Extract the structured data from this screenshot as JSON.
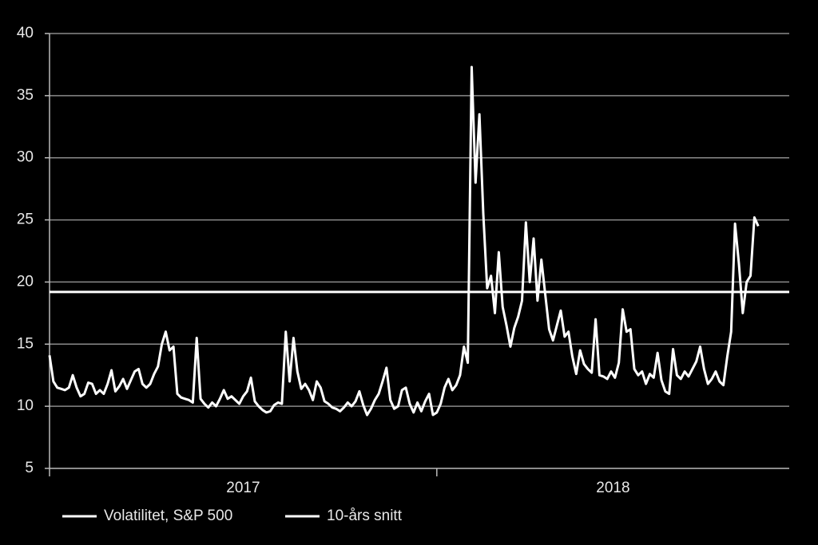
{
  "chart_data": {
    "type": "line",
    "x": [
      2017,
      2017.01,
      2017.02,
      2017.03,
      2017.04,
      2017.05,
      2017.06,
      2017.07,
      2017.08,
      2017.09,
      2017.1,
      2017.11,
      2017.12,
      2017.13,
      2017.14,
      2017.15,
      2017.16,
      2017.17,
      2017.18,
      2017.19,
      2017.2,
      2017.21,
      2017.22,
      2017.23,
      2017.24,
      2017.25,
      2017.26,
      2017.27,
      2017.28,
      2017.29,
      2017.3,
      2017.31,
      2017.32,
      2017.33,
      2017.34,
      2017.35,
      2017.36,
      2017.37,
      2017.38,
      2017.39,
      2017.4,
      2017.41,
      2017.42,
      2017.43,
      2017.44,
      2017.45,
      2017.46,
      2017.47,
      2017.48,
      2017.49,
      2017.5,
      2017.51,
      2017.52,
      2017.53,
      2017.54,
      2017.55,
      2017.56,
      2017.57,
      2017.58,
      2017.59,
      2017.6,
      2017.61,
      2017.62,
      2017.63,
      2017.64,
      2017.65,
      2017.66,
      2017.67,
      2017.68,
      2017.69,
      2017.7,
      2017.71,
      2017.72,
      2017.73,
      2017.74,
      2017.75,
      2017.76,
      2017.77,
      2017.78,
      2017.79,
      2017.8,
      2017.81,
      2017.82,
      2017.83,
      2017.84,
      2017.85,
      2017.86,
      2017.87,
      2017.88,
      2017.89,
      2017.9,
      2017.91,
      2017.92,
      2017.93,
      2017.94,
      2017.95,
      2017.96,
      2017.97,
      2017.98,
      2017.99,
      2018,
      2018.01,
      2018.02,
      2018.03,
      2018.04,
      2018.05,
      2018.06,
      2018.07,
      2018.08,
      2018.09,
      2018.1,
      2018.11,
      2018.12,
      2018.13,
      2018.14,
      2018.15,
      2018.16,
      2018.17,
      2018.18,
      2018.19,
      2018.2,
      2018.21,
      2018.22,
      2018.23,
      2018.24,
      2018.25,
      2018.26,
      2018.27,
      2018.28,
      2018.29,
      2018.3,
      2018.31,
      2018.32,
      2018.33,
      2018.34,
      2018.35,
      2018.36,
      2018.37,
      2018.38,
      2018.39,
      2018.4,
      2018.41,
      2018.42,
      2018.43,
      2018.44,
      2018.45,
      2018.46,
      2018.47,
      2018.48,
      2018.49,
      2018.5,
      2018.51,
      2018.52,
      2018.53,
      2018.54,
      2018.55,
      2018.56,
      2018.57,
      2018.58,
      2018.59,
      2018.6,
      2018.61,
      2018.62,
      2018.63,
      2018.64,
      2018.65,
      2018.66,
      2018.67,
      2018.68,
      2018.69,
      2018.7,
      2018.71,
      2018.72,
      2018.73,
      2018.74,
      2018.75,
      2018.76,
      2018.77,
      2018.78,
      2018.79,
      2018.8,
      2018.81,
      2018.82,
      2018.83
    ],
    "series": [
      {
        "name": "Volatilitet, S&P 500",
        "color": "#ffffff",
        "values": [
          14.1,
          12,
          11.5,
          11.4,
          11.3,
          11.5,
          12.5,
          11.5,
          10.8,
          11,
          11.9,
          11.8,
          11,
          11.3,
          11,
          11.8,
          12.9,
          11.2,
          11.6,
          12.2,
          11.4,
          12.1,
          12.8,
          13,
          11.8,
          11.5,
          11.8,
          12.6,
          13.2,
          15,
          16,
          14.5,
          14.8,
          11,
          10.7,
          10.6,
          10.5,
          10.3,
          15.5,
          10.6,
          10.2,
          9.9,
          10.3,
          10,
          10.6,
          11.3,
          10.6,
          10.8,
          10.5,
          10.2,
          10.8,
          11.2,
          12.3,
          10.4,
          10,
          9.7,
          9.5,
          9.6,
          10.1,
          10.3,
          10.2,
          16,
          12,
          15.5,
          12.8,
          11.4,
          11.8,
          11.3,
          10.5,
          12,
          11.5,
          10.4,
          10.2,
          9.9,
          9.8,
          9.6,
          9.9,
          10.3,
          10,
          10.4,
          11.2,
          10.1,
          9.3,
          9.8,
          10.5,
          11,
          12,
          13.1,
          10.5,
          9.8,
          10,
          11.3,
          11.5,
          10.2,
          9.5,
          10.3,
          9.6,
          10.4,
          11,
          9.3,
          9.5,
          10.2,
          11.5,
          12.2,
          11.3,
          11.7,
          12.5,
          14.8,
          13.5,
          37.3,
          28,
          33.5,
          25.5,
          19.5,
          20.5,
          17.5,
          22.4,
          18,
          16.5,
          14.8,
          16.3,
          17.2,
          18.5,
          24.8,
          20,
          23.5,
          18.5,
          21.8,
          19,
          16.2,
          15.3,
          16.5,
          17.7,
          15.6,
          16,
          14,
          12.6,
          14.5,
          13.4,
          13,
          12.7,
          17,
          12.5,
          12.4,
          12.2,
          12.8,
          12.3,
          13.5,
          17.8,
          16,
          16.2,
          13,
          12.5,
          12.8,
          11.8,
          12.6,
          12.3,
          14.3,
          12.1,
          11.2,
          11,
          14.6,
          12.5,
          12.2,
          12.8,
          12.4,
          13,
          13.6,
          14.8,
          13,
          11.8,
          12.2,
          12.8,
          12,
          11.7,
          14,
          16,
          24.7,
          21.5,
          17.5,
          20,
          20.5,
          25.2,
          24.5
        ]
      },
      {
        "name": "10-års snitt",
        "color": "#ffffff",
        "value": 19.2
      }
    ],
    "xlim": [
      2017,
      2018.91
    ],
    "xticks": [
      2017,
      2018
    ],
    "ylim": [
      5,
      40
    ],
    "yticks": [
      5,
      10,
      15,
      20,
      25,
      30,
      35,
      40
    ],
    "grid": true,
    "legend": "bottom"
  }
}
